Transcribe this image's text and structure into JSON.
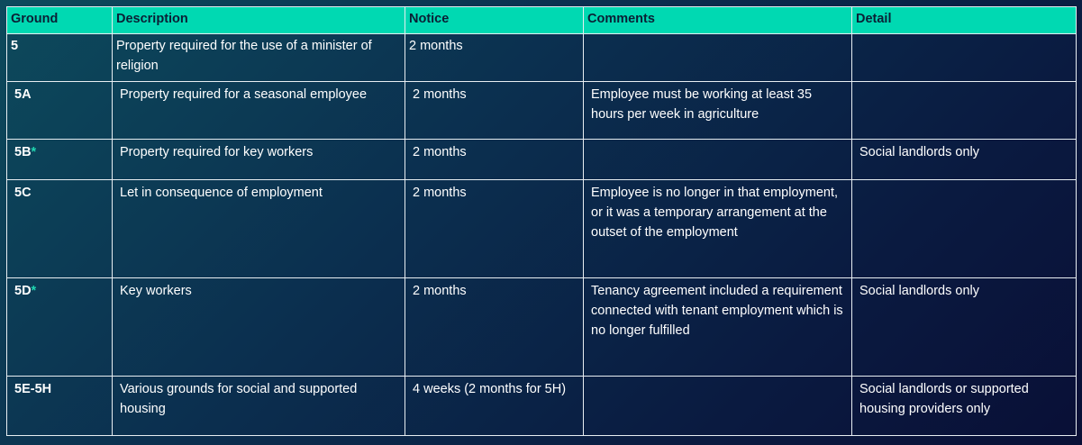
{
  "table": {
    "headers": [
      "Ground",
      "Description",
      "Notice",
      "Comments",
      "Detail"
    ],
    "rows": [
      {
        "ground": "5",
        "star": "",
        "description": "Property required for the use of a minister of religion",
        "notice": "2 months",
        "comments": "",
        "detail": ""
      },
      {
        "ground": "5A",
        "star": "",
        "description": "Property required for a seasonal employee",
        "notice": "2 months",
        "comments": "Employee must be working at least 35 hours per week in agriculture",
        "detail": ""
      },
      {
        "ground": "5B",
        "star": "*",
        "description": "Property required for key workers",
        "notice": "2 months",
        "comments": "",
        "detail": "Social landlords only"
      },
      {
        "ground": "5C",
        "star": "",
        "description": "Let in consequence of employment",
        "notice": "2 months",
        "comments": "Employee is no longer in that employment, or it was a temporary arrangement at the outset of the employment",
        "detail": ""
      },
      {
        "ground": "5D",
        "star": "*",
        "description": "Key workers",
        "notice": "2 months",
        "comments": "Tenancy agreement included a requirement connected with tenant employment which is no longer fulfilled",
        "detail": "Social landlords only"
      },
      {
        "ground": "5E-5H",
        "star": "",
        "description": "Various grounds for social and supported housing",
        "notice": "4 weeks (2 months for 5H)",
        "comments": "",
        "detail": "Social landlords or supported housing providers only"
      }
    ]
  },
  "colors": {
    "header_bg": "#00d9b2",
    "header_text": "#0b1f35",
    "star": "#1fd6b0",
    "background_start": "#0d4a5c",
    "background_end": "#090f36"
  }
}
